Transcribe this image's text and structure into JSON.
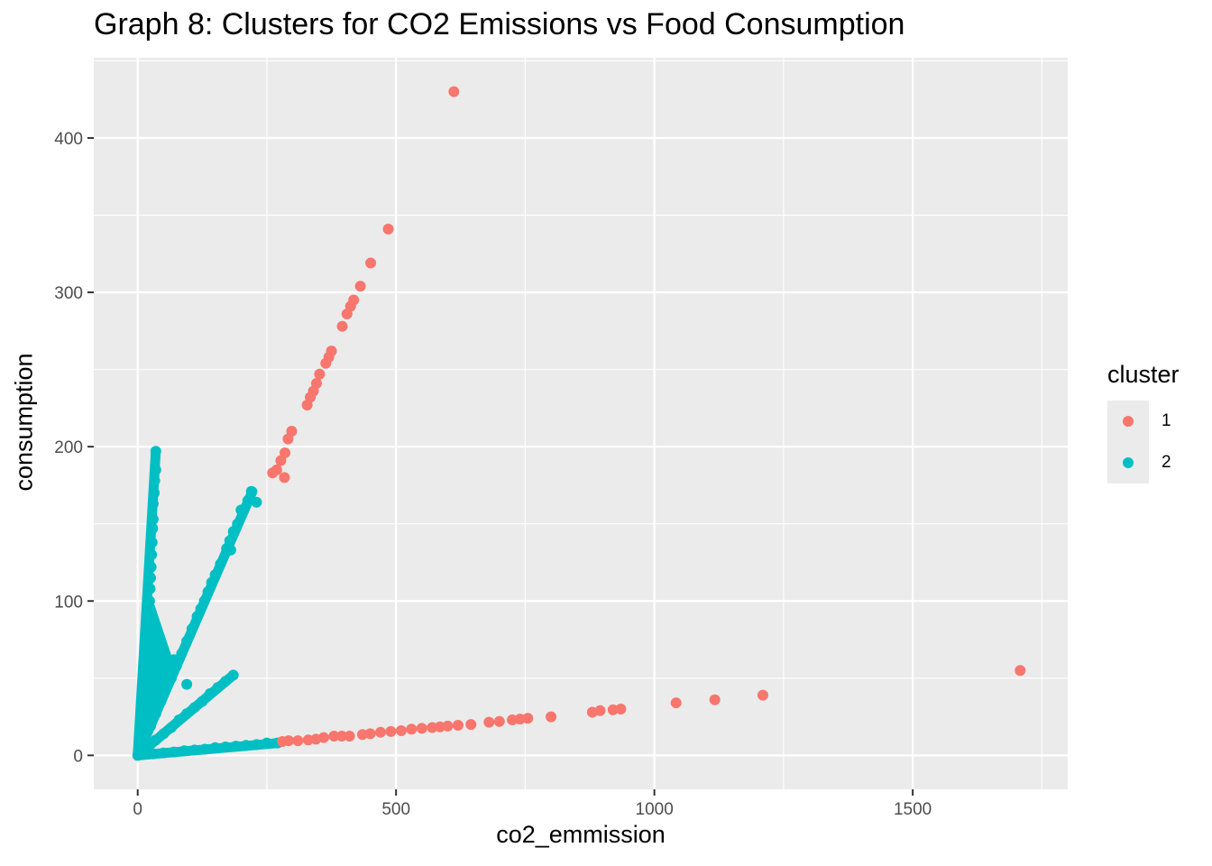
{
  "chart_data": {
    "type": "scatter",
    "title": "Graph 8: Clusters for CO2 Emissions vs Food Consumption",
    "xlabel": "co2_emmission",
    "ylabel": "consumption",
    "xlim": [
      -85,
      1800
    ],
    "ylim": [
      -22,
      452
    ],
    "x_ticks": [
      0,
      500,
      1000,
      1500
    ],
    "x_tick_labels": [
      "0",
      "500",
      "1000",
      "1500"
    ],
    "y_ticks": [
      0,
      100,
      200,
      300,
      400
    ],
    "y_tick_labels": [
      "0",
      "100",
      "200",
      "300",
      "400"
    ],
    "grid": true,
    "panel_background": "#ebebeb",
    "legend": {
      "title": "cluster",
      "position": "right",
      "entries": [
        {
          "label": "1",
          "color": "#f8766d"
        },
        {
          "label": "2",
          "color": "#00bfc4"
        }
      ]
    },
    "series": [
      {
        "name": "1",
        "color": "#f8766d",
        "points": [
          [
            612,
            430
          ],
          [
            485,
            341
          ],
          [
            451,
            319
          ],
          [
            431,
            304
          ],
          [
            418,
            295
          ],
          [
            412,
            291
          ],
          [
            405,
            286
          ],
          [
            396,
            278
          ],
          [
            375,
            262
          ],
          [
            370,
            258
          ],
          [
            364,
            254
          ],
          [
            352,
            247
          ],
          [
            346,
            241
          ],
          [
            340,
            236
          ],
          [
            334,
            232
          ],
          [
            328,
            227
          ],
          [
            298,
            210
          ],
          [
            291,
            205
          ],
          [
            285,
            196
          ],
          [
            277,
            191
          ],
          [
            269,
            185
          ],
          [
            284,
            180
          ],
          [
            261,
            183
          ],
          [
            280,
            9
          ],
          [
            292,
            9.5
          ],
          [
            310,
            9.5
          ],
          [
            330,
            10
          ],
          [
            345,
            10.5
          ],
          [
            360,
            11.5
          ],
          [
            380,
            12.5
          ],
          [
            395,
            12.5
          ],
          [
            410,
            12.5
          ],
          [
            435,
            13.5
          ],
          [
            450,
            14
          ],
          [
            470,
            15
          ],
          [
            490,
            15.5
          ],
          [
            510,
            16
          ],
          [
            530,
            17
          ],
          [
            550,
            17.5
          ],
          [
            570,
            18
          ],
          [
            585,
            18.5
          ],
          [
            600,
            19
          ],
          [
            620,
            19.5
          ],
          [
            645,
            20
          ],
          [
            680,
            21.5
          ],
          [
            700,
            22
          ],
          [
            725,
            23
          ],
          [
            740,
            23.5
          ],
          [
            755,
            24
          ],
          [
            800,
            25
          ],
          [
            880,
            28
          ],
          [
            895,
            29
          ],
          [
            920,
            29.5
          ],
          [
            935,
            30
          ],
          [
            1042,
            34
          ],
          [
            1117,
            36
          ],
          [
            1210,
            39
          ],
          [
            1708,
            55
          ]
        ]
      },
      {
        "name": "2",
        "color": "#00bfc4",
        "points": [
          [
            35,
            197
          ],
          [
            35,
            185
          ],
          [
            33,
            178
          ],
          [
            32,
            170
          ],
          [
            30,
            163
          ],
          [
            30,
            153
          ],
          [
            29,
            147
          ],
          [
            28,
            138
          ],
          [
            27,
            130
          ],
          [
            26,
            122
          ],
          [
            25,
            115
          ],
          [
            24,
            108
          ],
          [
            23,
            100
          ],
          [
            22,
            92
          ],
          [
            21,
            84
          ],
          [
            20,
            76
          ],
          [
            19,
            68
          ],
          [
            18,
            60
          ],
          [
            16,
            52
          ],
          [
            14,
            44
          ],
          [
            12,
            36
          ],
          [
            10,
            28
          ],
          [
            8,
            20
          ],
          [
            5,
            12
          ],
          [
            3,
            6
          ],
          [
            0,
            0
          ],
          [
            220,
            171
          ],
          [
            213,
            165
          ],
          [
            205,
            159
          ],
          [
            193,
            150
          ],
          [
            185,
            145
          ],
          [
            178,
            139
          ],
          [
            172,
            134
          ],
          [
            160,
            124
          ],
          [
            150,
            117
          ],
          [
            143,
            112
          ],
          [
            136,
            106
          ],
          [
            129,
            100
          ],
          [
            122,
            95
          ],
          [
            115,
            90
          ],
          [
            105,
            82
          ],
          [
            95,
            74
          ],
          [
            85,
            66
          ],
          [
            75,
            58
          ],
          [
            65,
            50
          ],
          [
            55,
            43
          ],
          [
            45,
            35
          ],
          [
            35,
            27
          ],
          [
            25,
            19
          ],
          [
            15,
            12
          ],
          [
            5,
            4
          ],
          [
            230,
            164
          ],
          [
            200,
            159
          ],
          [
            180,
            133
          ],
          [
            70,
            62
          ],
          [
            95,
            46
          ],
          [
            60,
            53
          ],
          [
            185,
            52
          ],
          [
            170,
            48
          ],
          [
            155,
            44
          ],
          [
            140,
            40
          ],
          [
            125,
            35
          ],
          [
            110,
            31
          ],
          [
            95,
            27
          ],
          [
            80,
            23
          ],
          [
            65,
            18
          ],
          [
            50,
            14
          ],
          [
            35,
            10
          ],
          [
            20,
            6
          ],
          [
            270,
            8
          ],
          [
            250,
            8
          ],
          [
            230,
            7
          ],
          [
            210,
            6.5
          ],
          [
            190,
            6
          ],
          [
            170,
            5.5
          ],
          [
            150,
            5
          ],
          [
            130,
            4
          ],
          [
            110,
            3.5
          ],
          [
            90,
            3
          ],
          [
            70,
            2.2
          ],
          [
            50,
            1.6
          ],
          [
            30,
            1
          ],
          [
            10,
            0.5
          ]
        ]
      }
    ]
  }
}
